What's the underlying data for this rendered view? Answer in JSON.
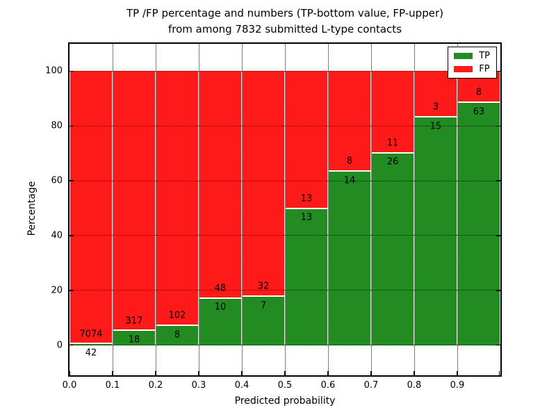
{
  "title": {
    "line1": "TP /FP percentage and numbers (TP-bottom value, FP-upper)",
    "line2": "from among 7832 submitted L-type contacts"
  },
  "chart_data": {
    "type": "bar",
    "stacked": true,
    "percent_normalized": true,
    "title": "TP /FP percentage and numbers (TP-bottom value, FP-upper) from among 7832 submitted L-type contacts",
    "total_contacts_shown_in_title": 7832,
    "xlabel": "Predicted probability",
    "ylabel": "Percentage",
    "bin_edges": [
      0.0,
      0.1,
      0.2,
      0.3,
      0.4,
      0.5,
      0.6,
      0.7,
      0.8,
      0.9,
      1.0
    ],
    "categories": [
      "0.0-0.1",
      "0.1-0.2",
      "0.2-0.3",
      "0.3-0.4",
      "0.4-0.5",
      "0.5-0.6",
      "0.6-0.7",
      "0.7-0.8",
      "0.8-0.9",
      "0.9-1.0"
    ],
    "series": [
      {
        "name": "TP",
        "color": "#228b22",
        "counts": [
          42,
          18,
          8,
          10,
          7,
          13,
          14,
          26,
          15,
          63
        ]
      },
      {
        "name": "FP",
        "color": "#ff1a1a",
        "counts": [
          7074,
          317,
          102,
          48,
          32,
          13,
          8,
          11,
          3,
          8
        ]
      }
    ],
    "tp_percent_depicted": [
      0.59,
      5.37,
      7.27,
      17.24,
      17.95,
      50.0,
      63.64,
      70.27,
      83.33,
      88.73
    ],
    "x_ticks": [
      "0.0",
      "0.1",
      "0.2",
      "0.3",
      "0.4",
      "0.5",
      "0.6",
      "0.7",
      "0.8",
      "0.9"
    ],
    "y_ticks": [
      "0",
      "20",
      "40",
      "60",
      "80",
      "100"
    ],
    "xlim": [
      0.0,
      1.0
    ],
    "ylim": [
      -11,
      110
    ],
    "grid": "dotted black, horizontal and vertical",
    "legend": {
      "position": "upper right",
      "entries": [
        "TP",
        "FP"
      ]
    }
  },
  "colors": {
    "tp": "#228b22",
    "fp": "#ff1a1a",
    "background": "#ffffff",
    "frame": "#000000"
  }
}
